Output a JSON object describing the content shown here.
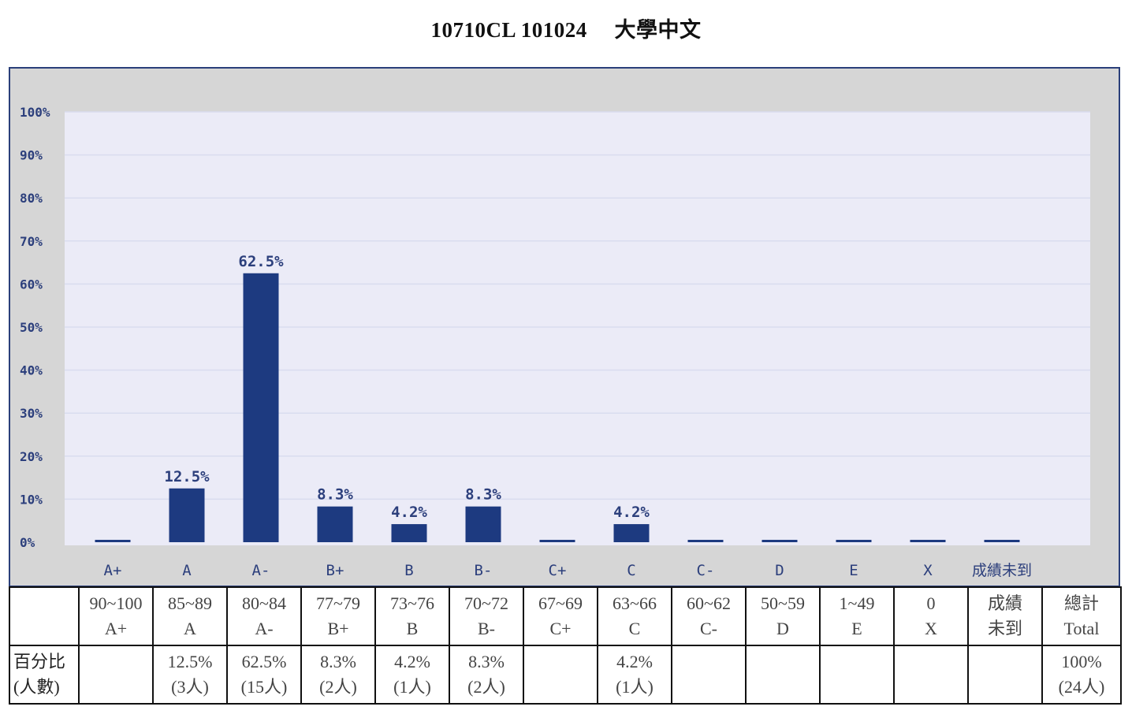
{
  "page": {
    "title": "10710CL 101024　 大學中文"
  },
  "chart_data": {
    "type": "bar",
    "title": "10710CL 101024　 大學中文",
    "xlabel": "",
    "ylabel": "",
    "categories": [
      "A+",
      "A",
      "A-",
      "B+",
      "B",
      "B-",
      "C+",
      "C",
      "C-",
      "D",
      "E",
      "X",
      "成績未到"
    ],
    "values": [
      0,
      12.5,
      62.5,
      8.3,
      4.2,
      8.3,
      0,
      4.2,
      0,
      0,
      0,
      0,
      0
    ],
    "data_labels": [
      "",
      "12.5%",
      "62.5%",
      "8.3%",
      "4.2%",
      "8.3%",
      "",
      "4.2%",
      "",
      "",
      "",
      "",
      ""
    ],
    "ylim": [
      0,
      100
    ],
    "yticks": [
      "0%",
      "10%",
      "20%",
      "30%",
      "40%",
      "50%",
      "60%",
      "70%",
      "80%",
      "90%",
      "100%"
    ],
    "grid": true,
    "legend": "none",
    "colors": {
      "bar": "#1d3a80",
      "plot_bg": "#ebebf7",
      "frame_bg": "#d6d6d6",
      "grid": "#d9dcef"
    }
  },
  "table": {
    "row_header": [
      "百分比",
      "(人數)"
    ],
    "ranges": [
      [
        "90~100",
        "A+"
      ],
      [
        "85~89",
        "A"
      ],
      [
        "80~84",
        "A-"
      ],
      [
        "77~79",
        "B+"
      ],
      [
        "73~76",
        "B"
      ],
      [
        "70~72",
        "B-"
      ],
      [
        "67~69",
        "C+"
      ],
      [
        "63~66",
        "C"
      ],
      [
        "60~62",
        "C-"
      ],
      [
        "50~59",
        "D"
      ],
      [
        "1~49",
        "E"
      ],
      [
        "0",
        "X"
      ],
      [
        "成績",
        "未到"
      ],
      [
        "總計",
        "Total"
      ]
    ],
    "percents": [
      [
        "",
        ""
      ],
      [
        "12.5%",
        "(3人)"
      ],
      [
        "62.5%",
        "(15人)"
      ],
      [
        "8.3%",
        "(2人)"
      ],
      [
        "4.2%",
        "(1人)"
      ],
      [
        "8.3%",
        "(2人)"
      ],
      [
        "",
        ""
      ],
      [
        "4.2%",
        "(1人)"
      ],
      [
        "",
        ""
      ],
      [
        "",
        ""
      ],
      [
        "",
        ""
      ],
      [
        "",
        ""
      ],
      [
        "",
        ""
      ],
      [
        "100%",
        "(24人)"
      ]
    ]
  }
}
